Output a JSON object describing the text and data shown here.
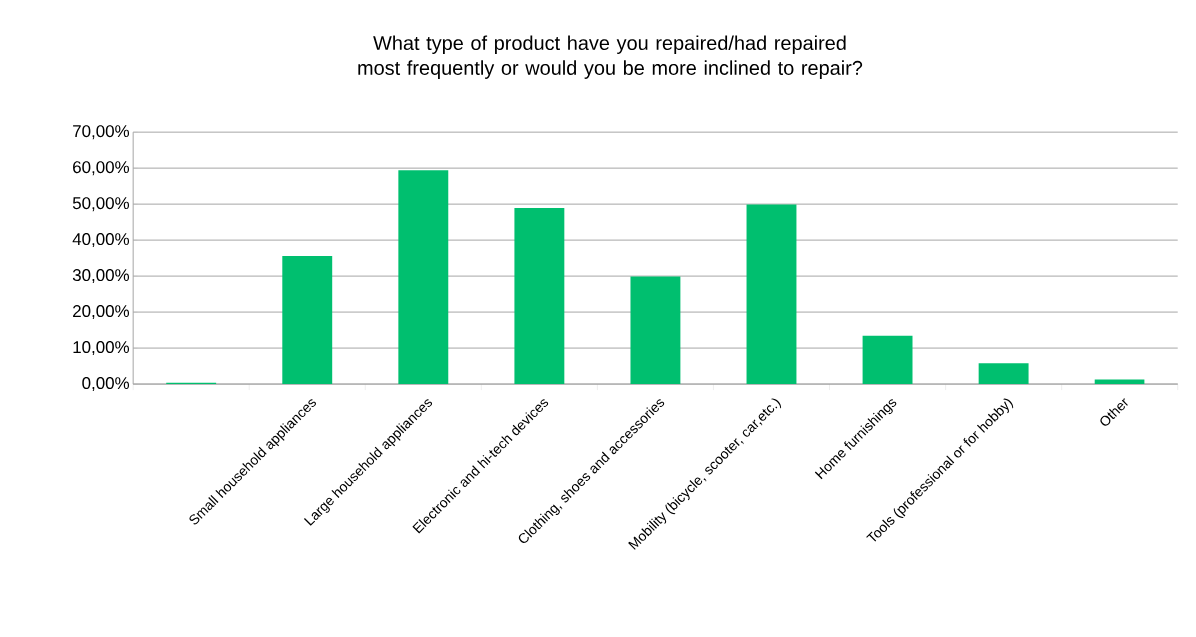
{
  "chart_data": {
    "type": "bar",
    "title": "What type of product have you repaired/had repaired most frequently or would you be more inclined to repair?",
    "categories": [
      null,
      "Small household appliances",
      "Large household appliances",
      "Electronic and hi-tech devices",
      "Clothing, shoes and accessories",
      "Mobility (bicycle, scooter, car,etc.)",
      "Home furnishings",
      "Tools (professional or for hobby)",
      "Other"
    ],
    "values": [
      0.4,
      35.6,
      59.4,
      48.9,
      29.9,
      49.9,
      13.4,
      5.8,
      1.3
    ],
    "color": "#00bf6f",
    "ylim": [
      0,
      70
    ],
    "yticks": [
      {
        "value": 0,
        "label": "0,00%"
      },
      {
        "value": 10,
        "label": "10,00%"
      },
      {
        "value": 20,
        "label": "20,00%"
      },
      {
        "value": 30,
        "label": "30,00%"
      },
      {
        "value": 40,
        "label": "40,00%"
      },
      {
        "value": 50,
        "label": "50,00%"
      },
      {
        "value": 60,
        "label": "60,00%"
      },
      {
        "value": 70,
        "label": "70,00%"
      }
    ],
    "grid": "y"
  }
}
